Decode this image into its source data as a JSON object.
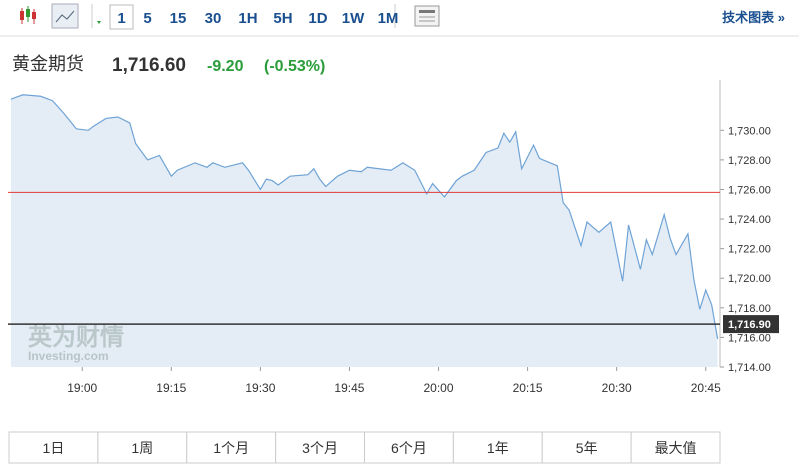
{
  "toolbar": {
    "intervals": [
      "1",
      "5",
      "15",
      "30",
      "1H",
      "5H",
      "1D",
      "1W",
      "1M"
    ],
    "active": 0,
    "tech_chart": "技术图表 »"
  },
  "quote": {
    "name": "黄金期货",
    "price": "1,716.60",
    "change": "-9.20",
    "change_pct": "(-0.53%)"
  },
  "chart_data": {
    "type": "area",
    "watermark": "英为财情",
    "watermark_sub": "Investing.com",
    "x": [
      1128,
      1130,
      1133,
      1135,
      1137,
      1139,
      1141,
      1142,
      1144,
      1146,
      1148,
      1149,
      1151,
      1153,
      1154,
      1155,
      1156,
      1159,
      1161,
      1162,
      1164,
      1167,
      1168,
      1170,
      1171,
      1172,
      1173,
      1175,
      1178,
      1179,
      1180,
      1181,
      1183,
      1185,
      1187,
      1188,
      1190,
      1192,
      1194,
      1196,
      1198,
      1199,
      1201,
      1203,
      1204,
      1206,
      1208,
      1210,
      1211,
      1212,
      1213,
      1214,
      1216,
      1217,
      1220,
      1221,
      1222,
      1224,
      1225,
      1227,
      1229,
      1231,
      1232,
      1234,
      1235,
      1236,
      1238,
      1239,
      1240,
      1242,
      1243,
      1244,
      1245,
      1246,
      1247
    ],
    "values": [
      1732.1,
      1732.4,
      1732.3,
      1732.0,
      1731.1,
      1730.1,
      1730.0,
      1730.3,
      1730.8,
      1730.9,
      1730.5,
      1729.1,
      1728.0,
      1728.3,
      1727.6,
      1726.9,
      1727.3,
      1727.8,
      1727.5,
      1727.8,
      1727.5,
      1727.8,
      1727.3,
      1726.0,
      1726.7,
      1726.6,
      1726.3,
      1726.9,
      1727.0,
      1727.4,
      1726.7,
      1726.2,
      1726.9,
      1727.3,
      1727.2,
      1727.5,
      1727.4,
      1727.3,
      1727.8,
      1727.3,
      1725.7,
      1726.4,
      1725.5,
      1726.6,
      1726.9,
      1727.3,
      1728.5,
      1728.8,
      1729.8,
      1729.2,
      1729.9,
      1727.4,
      1729.0,
      1728.1,
      1727.6,
      1725.1,
      1724.6,
      1722.2,
      1723.8,
      1723.1,
      1723.8,
      1719.8,
      1723.6,
      1720.6,
      1722.6,
      1721.6,
      1724.3,
      1722.7,
      1721.6,
      1723.0,
      1719.9,
      1717.9,
      1719.2,
      1718.2,
      1715.9
    ],
    "color": "#6fa3d6",
    "fill": "#e4edf5",
    "xlim": [
      1127.5,
      1247.4
    ],
    "ylim": [
      1714,
      1733.4
    ],
    "xticks": [
      {
        "value": 1140,
        "label": "19:00"
      },
      {
        "value": 1155,
        "label": "19:15"
      },
      {
        "value": 1170,
        "label": "19:30"
      },
      {
        "value": 1185,
        "label": "19:45"
      },
      {
        "value": 1200,
        "label": "20:00"
      },
      {
        "value": 1215,
        "label": "20:15"
      },
      {
        "value": 1230,
        "label": "20:30"
      },
      {
        "value": 1245,
        "label": "20:45"
      }
    ],
    "yticks": [
      {
        "value": 1714,
        "label": "1,714.00"
      },
      {
        "value": 1716,
        "label": "1,716.00"
      },
      {
        "value": 1718,
        "label": "1,718.00"
      },
      {
        "value": 1720,
        "label": "1,720.00"
      },
      {
        "value": 1722,
        "label": "1,722.00"
      },
      {
        "value": 1724,
        "label": "1,724.00"
      },
      {
        "value": 1726,
        "label": "1,726.00"
      },
      {
        "value": 1728,
        "label": "1,728.00"
      },
      {
        "value": 1730,
        "label": "1,730.00"
      }
    ],
    "reference_lines": [
      {
        "value": 1725.8,
        "color": "#e03a3a"
      },
      {
        "value": 1716.9,
        "label": "1,716.90",
        "color": "#333333"
      }
    ]
  },
  "ranges": [
    "1日",
    "1周",
    "1个月",
    "3个月",
    "6个月",
    "1年",
    "5年",
    "最大值"
  ]
}
